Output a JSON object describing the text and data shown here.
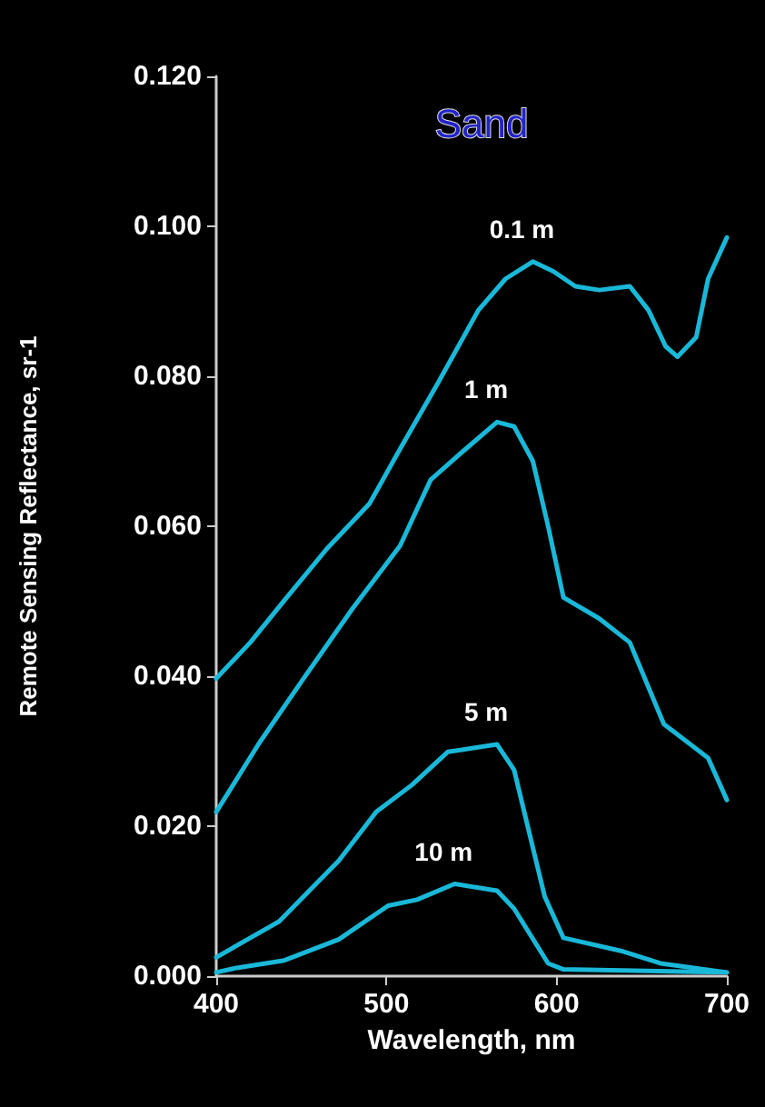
{
  "chart_data": {
    "type": "line",
    "title": "Sand",
    "xlabel": "Wavelength, nm",
    "ylabel": "Remote Sensing Reflectance, sr-1",
    "xlim": [
      400,
      700
    ],
    "xticks": [
      400,
      500,
      600,
      700
    ],
    "ylim": [
      0,
      0.12
    ],
    "yticks": [
      {
        "value": 0,
        "label": "0.000"
      },
      {
        "value": 0.02,
        "label": "0.020"
      },
      {
        "value": 0.04,
        "label": "0.040"
      },
      {
        "value": 0.06,
        "label": "0.060"
      },
      {
        "value": 0.08,
        "label": "0.080"
      },
      {
        "value": 0.1,
        "label": "0.100"
      },
      {
        "value": 0.12,
        "label": "0.120"
      }
    ],
    "grid": false,
    "marker": "none",
    "line_style": "solid",
    "series": [
      {
        "name": "0.1 m",
        "color": "#1ab8d8",
        "x": [
          400,
          420,
          440,
          465,
          490,
          508,
          530,
          554,
          570,
          586,
          598,
          611,
          625,
          643,
          654,
          664,
          671,
          682,
          689,
          700
        ],
        "values": [
          0.0397,
          0.0445,
          0.0501,
          0.057,
          0.063,
          0.0703,
          0.079,
          0.0888,
          0.093,
          0.0953,
          0.094,
          0.092,
          0.0915,
          0.092,
          0.0888,
          0.084,
          0.0826,
          0.0852,
          0.093,
          0.0985
        ]
      },
      {
        "name": "1 m",
        "color": "#1ab8d8",
        "x": [
          400,
          425,
          451,
          480,
          508,
          526,
          545,
          565,
          575,
          586,
          595,
          604,
          625,
          643,
          663,
          689,
          700
        ],
        "values": [
          0.0219,
          0.031,
          0.0396,
          0.049,
          0.0574,
          0.0662,
          0.07,
          0.0739,
          0.0733,
          0.0687,
          0.06,
          0.0505,
          0.0477,
          0.0445,
          0.0336,
          0.0291,
          0.0235
        ]
      },
      {
        "name": "5 m",
        "color": "#1ab8d8",
        "x": [
          400,
          437,
          472,
          494,
          515,
          536,
          565,
          575,
          593,
          604,
          639,
          661,
          700
        ],
        "values": [
          0.0025,
          0.0073,
          0.0154,
          0.0219,
          0.0255,
          0.0299,
          0.0309,
          0.0275,
          0.0106,
          0.0051,
          0.0033,
          0.0017,
          0.0005
        ]
      },
      {
        "name": "10 m",
        "color": "#1ab8d8",
        "x": [
          400,
          412,
          440,
          472,
          501,
          518,
          540,
          565,
          575,
          595,
          604,
          700
        ],
        "values": [
          0.0005,
          0.0011,
          0.0021,
          0.0049,
          0.0094,
          0.0102,
          0.0123,
          0.0114,
          0.009,
          0.0017,
          0.0009,
          0.0005
        ]
      }
    ]
  }
}
